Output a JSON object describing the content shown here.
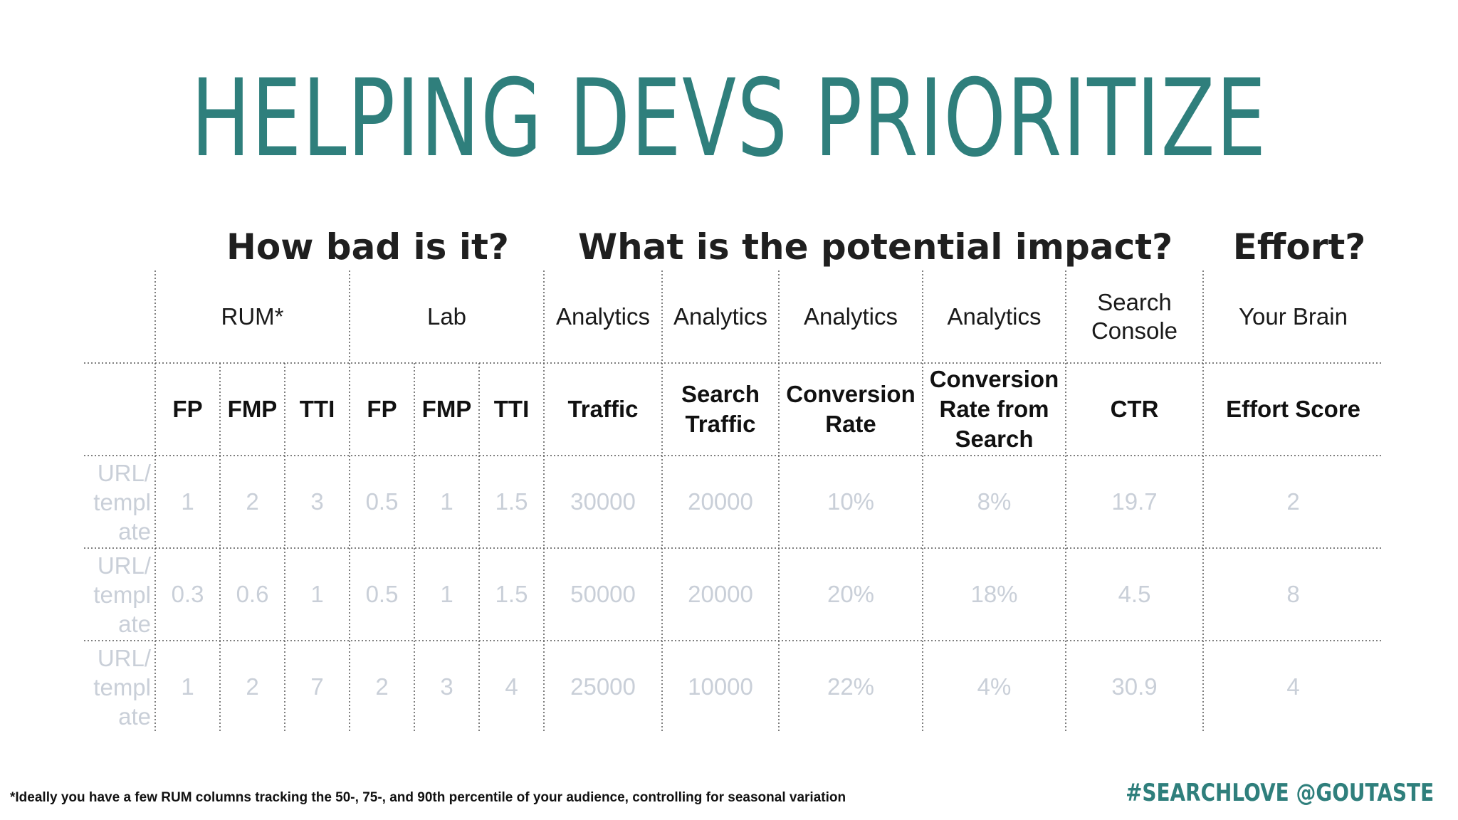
{
  "title": "HELPING DEVS PRIORITIZE",
  "sections": {
    "bad": "How bad is it?",
    "impact": "What is the potential impact?",
    "effort": "Effort?"
  },
  "sources": [
    "RUM*",
    "Lab",
    "Analytics",
    "Analytics",
    "Analytics",
    "Analytics",
    "Search Console",
    "Your Brain"
  ],
  "headers": [
    "FP",
    "FMP",
    "TTI",
    "FP",
    "FMP",
    "TTI",
    "Traffic",
    "Search Traffic",
    "Conversion Rate",
    "Conversion Rate from Search",
    "CTR",
    "Effort Score"
  ],
  "rows": [
    {
      "label": "URL/ templ ate",
      "values": [
        "1",
        "2",
        "3",
        "0.5",
        "1",
        "1.5",
        "30000",
        "20000",
        "10%",
        "8%",
        "19.7",
        "2"
      ]
    },
    {
      "label": "URL/ templ ate",
      "values": [
        "0.3",
        "0.6",
        "1",
        "0.5",
        "1",
        "1.5",
        "50000",
        "20000",
        "20%",
        "18%",
        "4.5",
        "8"
      ]
    },
    {
      "label": "URL/ templ ate",
      "values": [
        "1",
        "2",
        "7",
        "2",
        "3",
        "4",
        "25000",
        "10000",
        "22%",
        "4%",
        "30.9",
        "4"
      ]
    }
  ],
  "footnote": "*Ideally you have a few RUM columns tracking the 50-, 75-, and 90th percentile of your audience, controlling for seasonal variation",
  "hashtag": "#SEARCHLOVE @GOUTASTE",
  "colors": {
    "title": "#2f7f7c",
    "values": "#c9cfd8",
    "grid": "#555555"
  }
}
